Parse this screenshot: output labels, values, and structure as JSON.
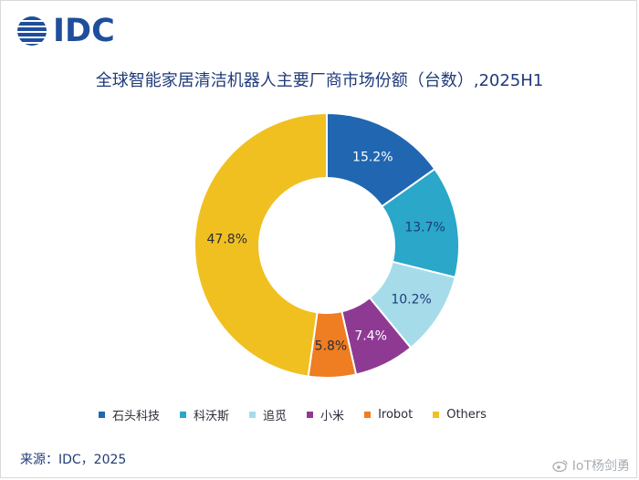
{
  "logo": {
    "text": "IDC",
    "color": "#1f4e9c"
  },
  "watermark": {
    "text": "IoT杨剑勇",
    "icon": "weibo-icon"
  },
  "source": "来源：IDC，2025",
  "chart_data": {
    "type": "donut",
    "title": "全球智能家居清洁机器人主要厂商市场份额（台数）,2025H1",
    "legend_position": "bottom",
    "categories": [
      "石头科技",
      "科沃斯",
      "追觅",
      "小米",
      "Irobot",
      "Others"
    ],
    "values": [
      15.2,
      13.7,
      10.2,
      7.4,
      5.8,
      47.8
    ],
    "labels": [
      "15.2%",
      "13.7%",
      "10.2%",
      "7.4%",
      "5.8%",
      "47.8%"
    ],
    "colors": [
      "#2166b0",
      "#2aa7c9",
      "#a6dcea",
      "#8e3a93",
      "#ef7d22",
      "#f0c020"
    ],
    "label_colors": [
      "#ffffff",
      "#1f3b7a",
      "#1f3b7a",
      "#ffffff",
      "#2c2c3a",
      "#2c2c3a"
    ]
  }
}
